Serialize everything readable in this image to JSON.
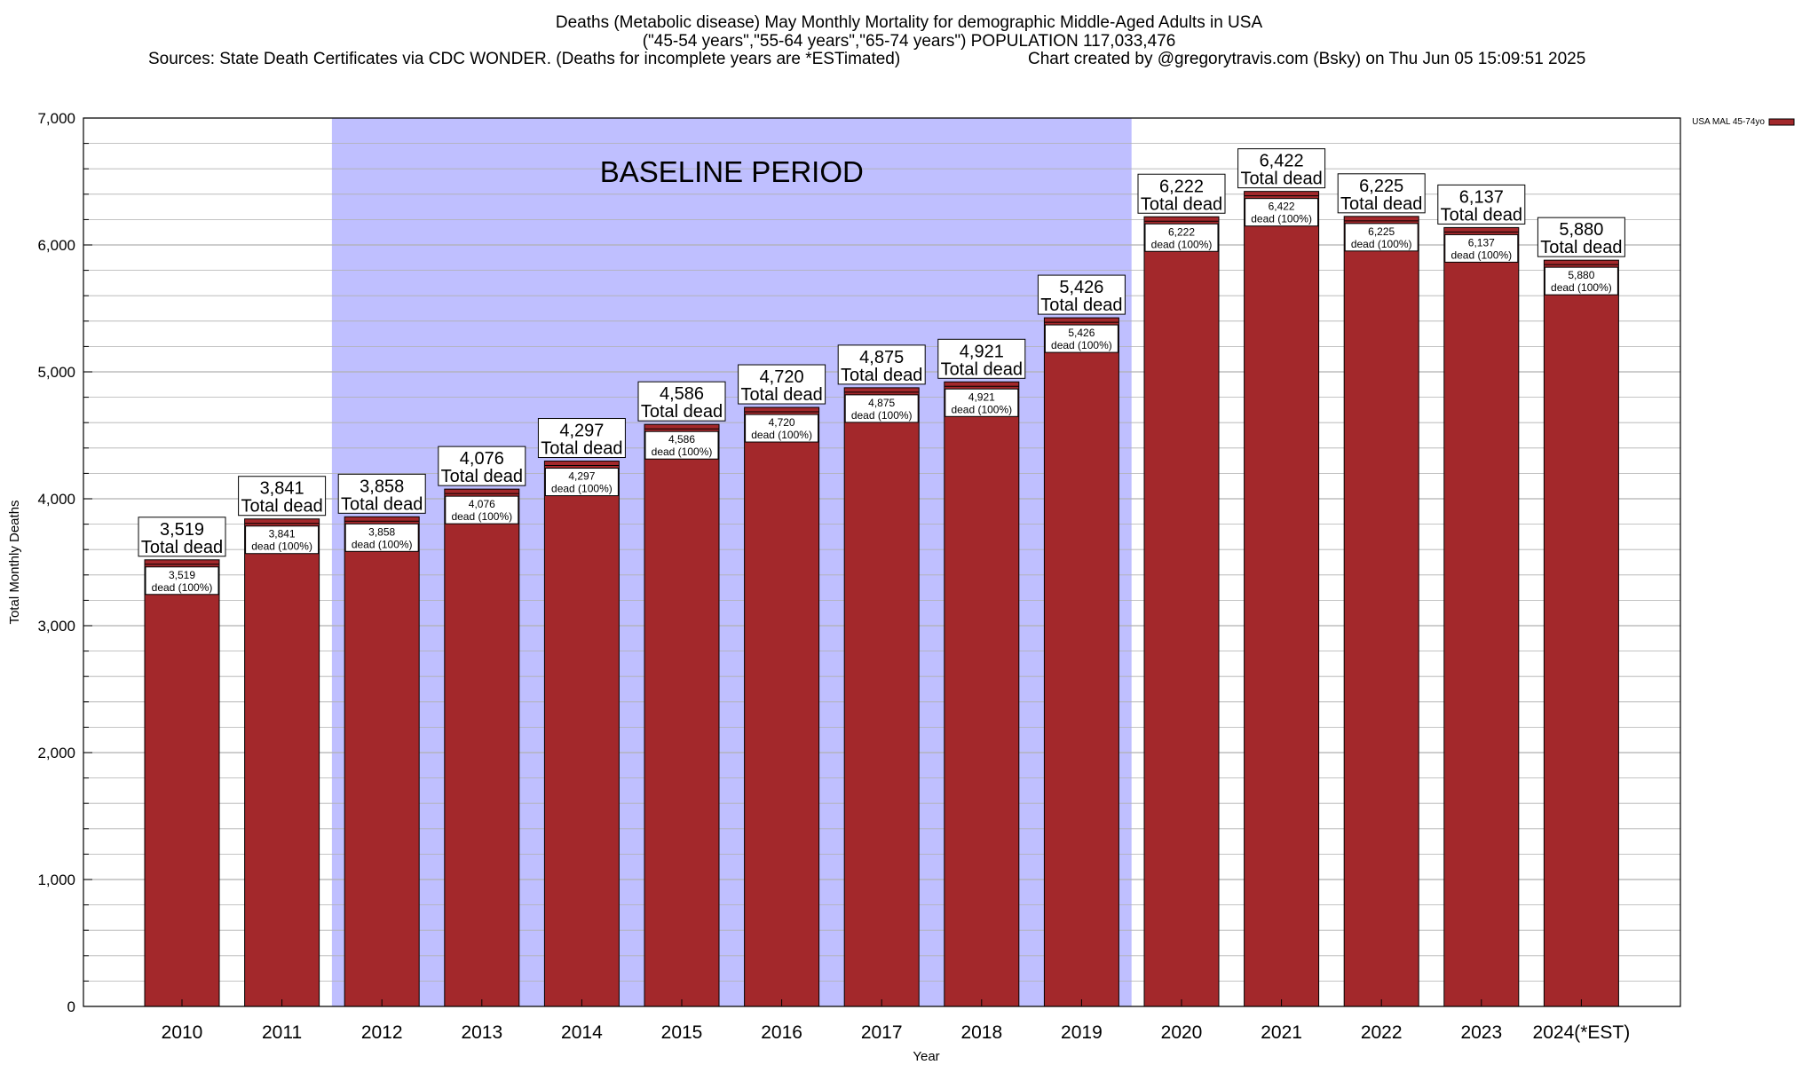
{
  "header": {
    "title_line1": "Deaths (Metabolic disease) May Monthly Mortality for demographic Middle-Aged Adults in USA",
    "title_line2": "(\"45-54 years\",\"55-64 years\",\"65-74 years\") POPULATION 117,033,476",
    "sources": "Sources: State Death Certificates via CDC WONDER. (Deaths for incomplete years are *ESTimated)",
    "credit": "Chart created by @gregorytravis.com (Bsky) on Thu Jun 05 15:09:51 2025"
  },
  "colors": {
    "bar": "#a3282b",
    "baseline_shade": "#bfbfff",
    "grid": "#b0b0b0"
  },
  "chart_data": {
    "type": "bar",
    "xlabel": "Year",
    "ylabel": "Total Monthly Deaths",
    "ylim": [
      0,
      7000
    ],
    "yticks": [
      0,
      1000,
      2000,
      3000,
      4000,
      5000,
      6000,
      7000
    ],
    "ytick_labels": [
      "0",
      "1,000",
      "2,000",
      "3,000",
      "4,000",
      "5,000",
      "6,000",
      "7,000"
    ],
    "grid": true,
    "legend": {
      "placement": "top-right",
      "entries": [
        "USA MAL 45-74yo"
      ]
    },
    "categories": [
      "2010",
      "2011",
      "2012",
      "2013",
      "2014",
      "2015",
      "2016",
      "2017",
      "2018",
      "2019",
      "2020",
      "2021",
      "2022",
      "2023",
      "2024(*EST)"
    ],
    "series": [
      {
        "name": "USA MAL 45-74yo",
        "values": [
          3519,
          3841,
          3858,
          4076,
          4297,
          4586,
          4720,
          4875,
          4921,
          5426,
          6222,
          6422,
          6225,
          6137,
          5880
        ]
      }
    ],
    "value_labels": [
      "3,519",
      "3,841",
      "3,858",
      "4,076",
      "4,297",
      "4,586",
      "4,720",
      "4,875",
      "4,921",
      "5,426",
      "6,222",
      "6,422",
      "6,225",
      "6,137",
      "5,880"
    ],
    "label_total_suffix": "Total dead",
    "label_inner_suffix": "dead (100%)",
    "baseline_region": {
      "label": "BASELINE PERIOD",
      "from": "2012",
      "to": "2019"
    }
  }
}
